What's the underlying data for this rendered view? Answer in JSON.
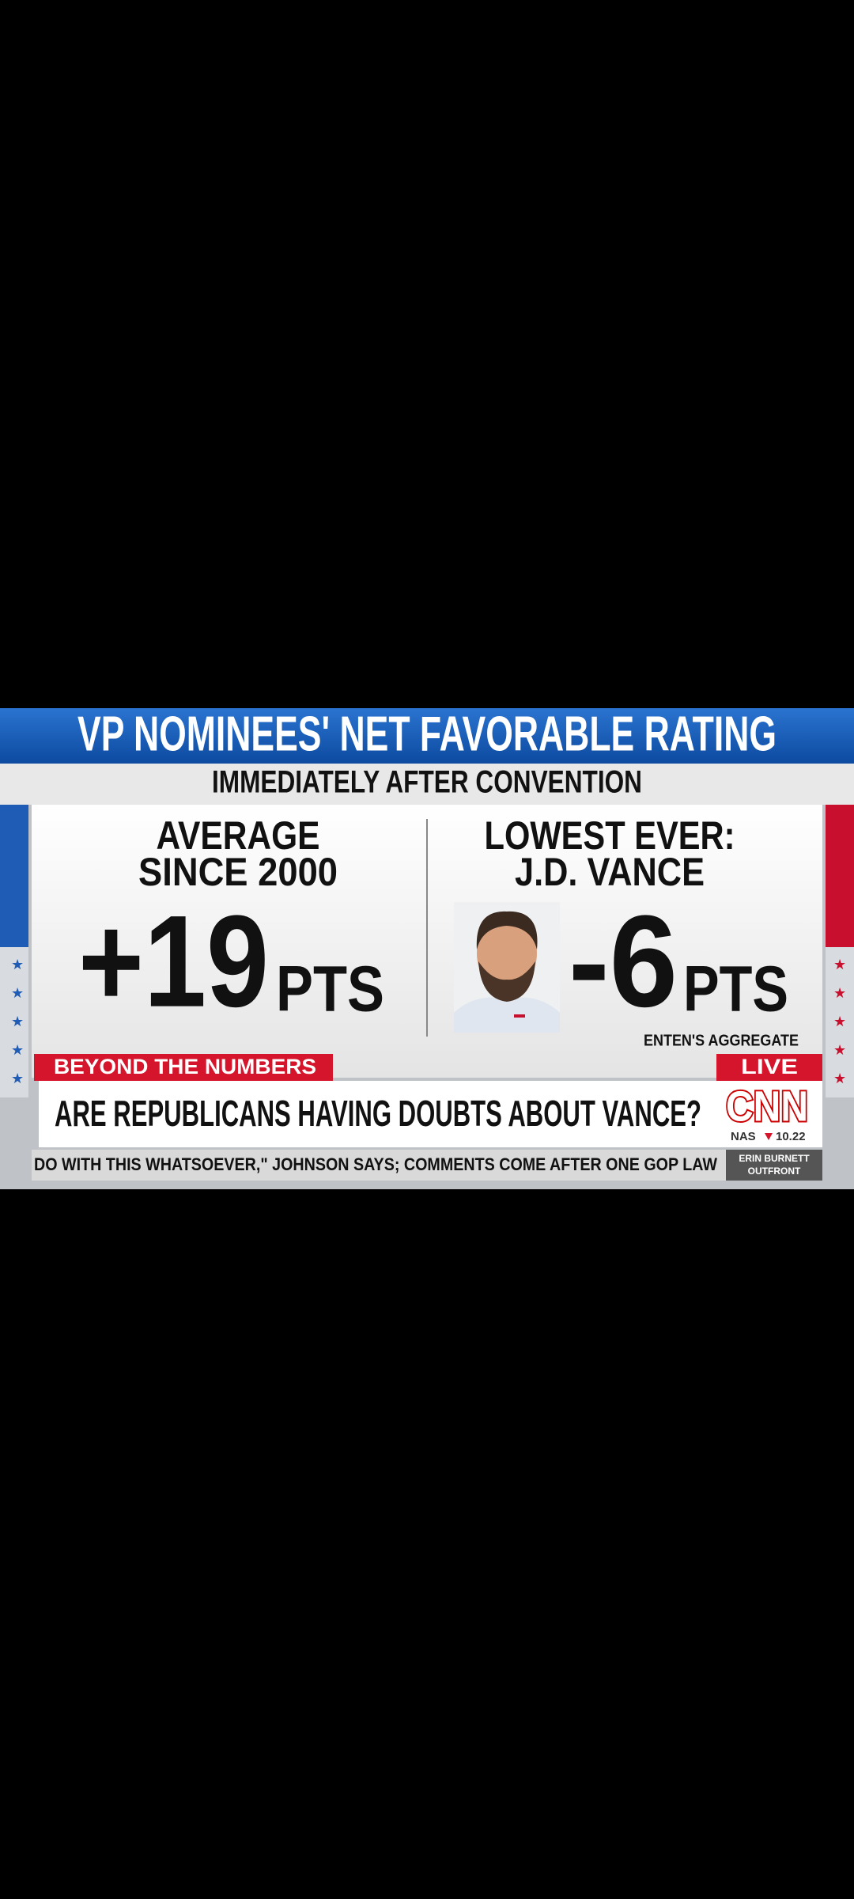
{
  "header": {
    "title": "VP NOMINEES' NET FAVORABLE RATING",
    "subtitle": "IMMEDIATELY AFTER CONVENTION"
  },
  "panels": [
    {
      "heading": [
        "AVERAGE",
        "SINCE 2000"
      ],
      "value": "+19",
      "unit": "PTS"
    },
    {
      "heading": [
        "LOWEST EVER:",
        "J.D. VANCE"
      ],
      "value": "-6",
      "unit": "PTS",
      "note": "ENTEN'S AGGREGATE"
    }
  ],
  "banner": {
    "tag": "BEYOND THE NUMBERS",
    "live": "LIVE",
    "headline": "ARE REPUBLICANS HAVING DOUBTS ABOUT VANCE?",
    "logo": "CNN",
    "market": {
      "index": "NAS",
      "change": "10.22"
    }
  },
  "ticker": {
    "text": "DO WITH THIS WHATSOEVER,\" JOHNSON SAYS; COMMENTS COME AFTER ONE GOP LAW",
    "show": [
      "ERIN BURNETT",
      "OUTFRONT"
    ]
  }
}
